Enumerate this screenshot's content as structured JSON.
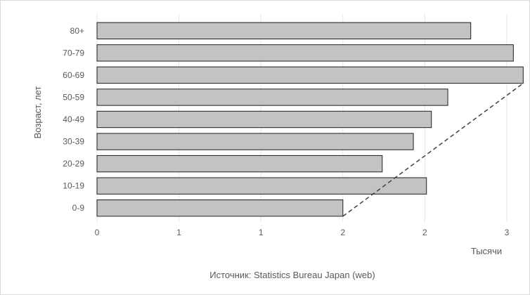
{
  "chart_data": {
    "type": "bar",
    "orientation": "horizontal",
    "categories": [
      "0-9",
      "10-19",
      "20-29",
      "30-39",
      "40-49",
      "50-59",
      "60-69",
      "70-79",
      "80+"
    ],
    "values": [
      1.5,
      2.01,
      1.74,
      1.93,
      2.04,
      2.14,
      2.6,
      2.54,
      2.28
    ],
    "x_tick_labels": [
      "0",
      "1",
      "1",
      "2",
      "2",
      "3"
    ],
    "x_tick_values": [
      0,
      0.5,
      1,
      1.5,
      2,
      2.5
    ],
    "xlim": [
      0,
      2.5
    ],
    "xlabel": "Тысячи",
    "ylabel": "Возраст, лет",
    "grid": true,
    "trendline": {
      "style": "dashed",
      "from_category": "0-9",
      "to_category": "60-69",
      "from_value": 1.5,
      "to_value": 2.6
    },
    "colors": {
      "bar_fill": "#c3c3c3",
      "bar_stroke": "#1f1f1f"
    }
  },
  "source": "Источник: Statistics Bureau Japan (web)"
}
